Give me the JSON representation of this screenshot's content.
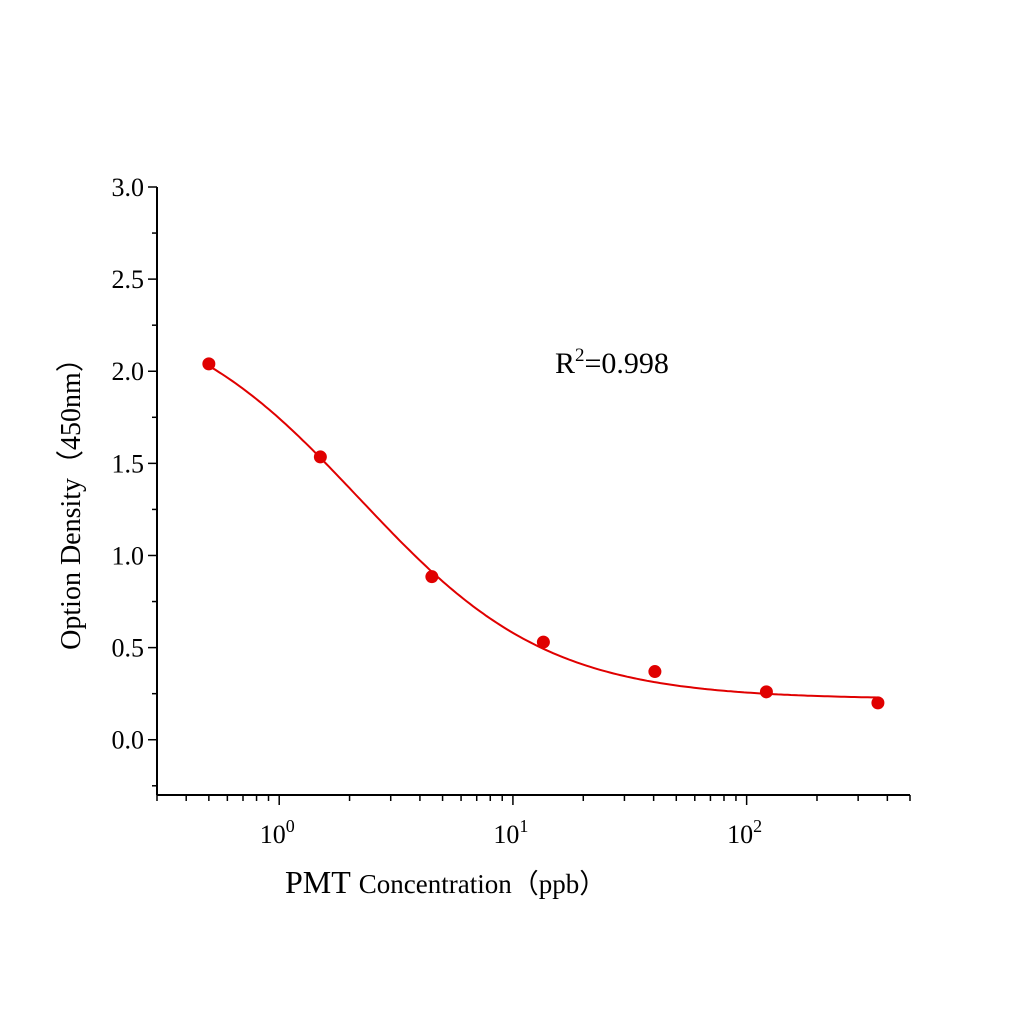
{
  "chart_data": {
    "type": "scatter",
    "title": "",
    "xlabel_prefix": "PMT",
    "xlabel": "Concentration（ppb）",
    "ylabel": "Option Density（450nm）",
    "x_scale": "log",
    "xlim": [
      0.3,
      500
    ],
    "ylim": [
      -0.3,
      3.0
    ],
    "x_ticks": [
      {
        "base": "10",
        "exp": "0",
        "value": 1
      },
      {
        "base": "10",
        "exp": "1",
        "value": 10
      },
      {
        "base": "10",
        "exp": "2",
        "value": 100
      }
    ],
    "y_ticks": [
      "0.0",
      "0.5",
      "1.0",
      "1.5",
      "2.0",
      "2.5",
      "3.0"
    ],
    "grid": false,
    "annotation": {
      "text_base": "R",
      "text_sup": "2",
      "text_rest": "=0.998"
    },
    "series": [
      {
        "x": [
          0.5,
          1.5,
          4.5,
          13.5,
          40.5,
          121.5,
          364.5
        ],
        "y": [
          2.04,
          1.535,
          0.885,
          0.53,
          0.37,
          0.26,
          0.2
        ],
        "fit": "4-parameter logistic",
        "color": "#e00000"
      }
    ]
  }
}
